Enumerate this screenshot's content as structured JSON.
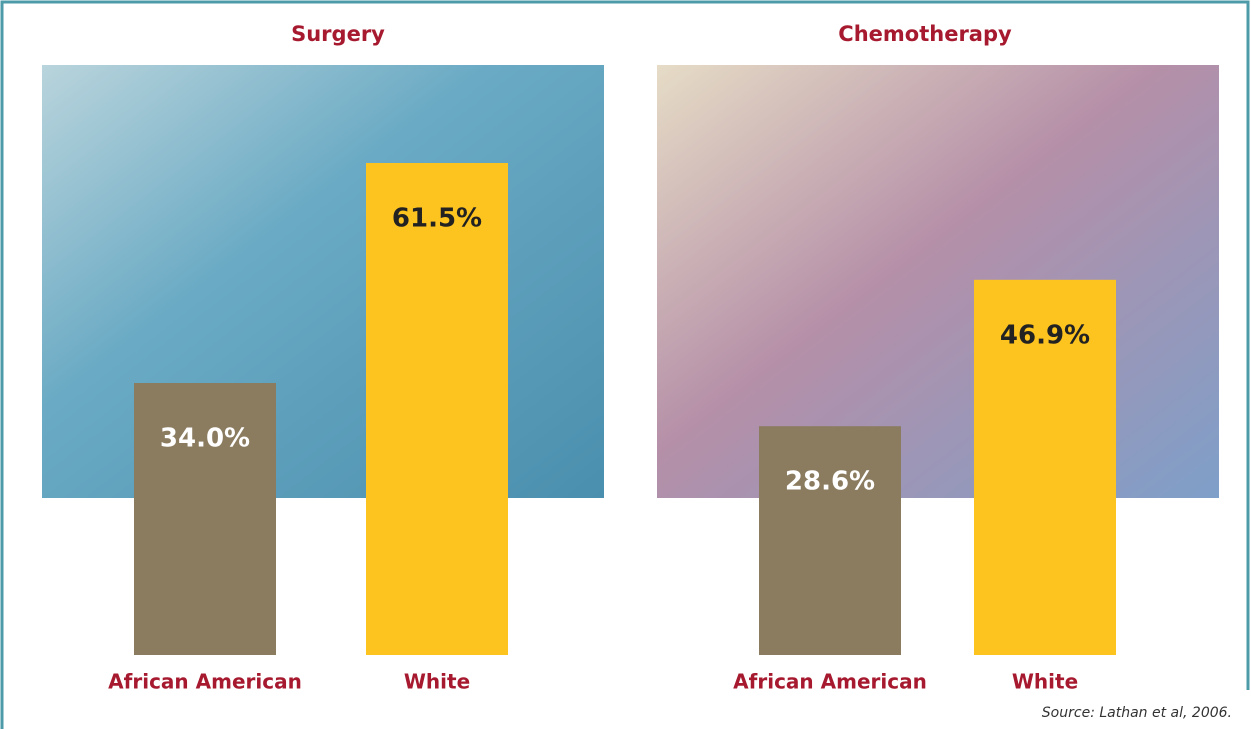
{
  "chart_data": [
    {
      "type": "bar",
      "title": "Surgery",
      "categories": [
        "African American",
        "White"
      ],
      "values": [
        34.0,
        61.5
      ],
      "value_labels": [
        "34.0%",
        "61.5%"
      ],
      "colors": [
        "#8b7b5f",
        "#fdc31f"
      ]
    },
    {
      "type": "bar",
      "title": "Chemotherapy",
      "categories": [
        "African American",
        "White"
      ],
      "values": [
        28.6,
        46.9
      ],
      "value_labels": [
        "28.6%",
        "46.9%"
      ],
      "colors": [
        "#8b7b5f",
        "#fdc31f"
      ]
    }
  ],
  "source": "Source: Lathan et al, 2006."
}
